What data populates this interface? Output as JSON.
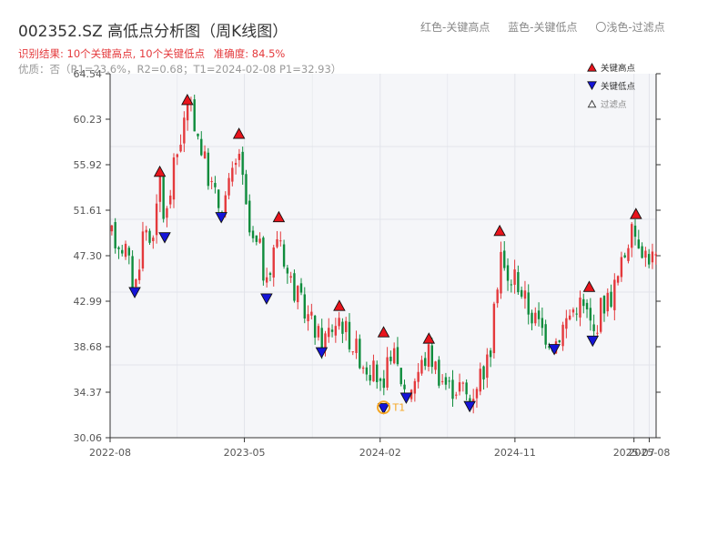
{
  "header": {
    "title": "002352.SZ 高低点分析图（周K线图）",
    "legend_high": "红色-关键高点",
    "legend_low": "蓝色-关键低点",
    "legend_filtered": "〇浅色-过滤点"
  },
  "summary": {
    "result_text": "识别结果: 10个关键高点, 10个关键低点",
    "accuracy_text": "准确度: 84.5%",
    "quality_text": "优质：否（R1=23.6%，R2=0.68；T1=2024-02-08 P1=32.93）"
  },
  "legend": {
    "high_label": "关键高点",
    "low_label": "关键低点",
    "filtered_label": "过滤点"
  },
  "colors": {
    "up": "#e4393c",
    "down": "#0e8c3c",
    "high_marker": "#e8141c",
    "low_marker": "#1414d8",
    "t1_marker": "#f5a623",
    "plot_bg": "#f5f6f9",
    "grid": "#e2e4ea"
  },
  "chart_data": {
    "type": "candlestick",
    "title": "002352.SZ 高低点分析图（周K线图）",
    "ylim": [
      30.06,
      64.54
    ],
    "y_ticks": [
      "30.06",
      "34.37",
      "38.68",
      "42.99",
      "47.30",
      "51.61",
      "55.92",
      "60.23",
      "64.54"
    ],
    "x_ticks": [
      "2022-08",
      "2023-05",
      "2024-02",
      "2024-11",
      "2025-07",
      "2025-08"
    ],
    "x_range": [
      "2022-08-01",
      "2025-08-15"
    ],
    "price_path": [
      [
        "2022-08-01",
        49.3
      ],
      [
        "2022-09-01",
        48.0
      ],
      [
        "2022-09-20",
        44.0
      ],
      [
        "2022-10-10",
        50.5
      ],
      [
        "2022-10-20",
        48.7
      ],
      [
        "2022-11-05",
        51.5
      ],
      [
        "2022-11-10",
        55.0
      ],
      [
        "2022-11-20",
        50.0
      ],
      [
        "2022-12-10",
        56.0
      ],
      [
        "2022-12-25",
        59.0
      ],
      [
        "2023-01-05",
        61.5
      ],
      [
        "2023-01-20",
        60.0
      ],
      [
        "2023-02-10",
        56.0
      ],
      [
        "2023-03-01",
        53.0
      ],
      [
        "2023-03-15",
        51.8
      ],
      [
        "2023-04-01",
        54.0
      ],
      [
        "2023-04-15",
        56.0
      ],
      [
        "2023-04-20",
        57.5
      ],
      [
        "2023-05-01",
        52.5
      ],
      [
        "2023-05-15",
        48.5
      ],
      [
        "2023-06-01",
        48.0
      ],
      [
        "2023-06-15",
        44.0
      ],
      [
        "2023-07-01",
        48.0
      ],
      [
        "2023-07-10",
        50.0
      ],
      [
        "2023-07-25",
        46.0
      ],
      [
        "2023-08-20",
        43.0
      ],
      [
        "2023-09-15",
        41.0
      ],
      [
        "2023-10-05",
        39.0
      ],
      [
        "2023-10-25",
        40.5
      ],
      [
        "2023-11-10",
        41.5
      ],
      [
        "2023-12-01",
        39.5
      ],
      [
        "2024-01-01",
        37.0
      ],
      [
        "2024-01-25",
        36.0
      ],
      [
        "2024-02-08",
        33.5
      ],
      [
        "2024-02-20",
        38.8
      ],
      [
        "2024-03-05",
        37.0
      ],
      [
        "2024-03-25",
        34.2
      ],
      [
        "2024-04-20",
        36.5
      ],
      [
        "2024-05-10",
        38.2
      ],
      [
        "2024-06-01",
        36.0
      ],
      [
        "2024-06-20",
        34.8
      ],
      [
        "2024-07-15",
        35.0
      ],
      [
        "2024-08-01",
        33.5
      ],
      [
        "2024-08-20",
        36.0
      ],
      [
        "2024-09-10",
        37.5
      ],
      [
        "2024-09-25",
        44.0
      ],
      [
        "2024-10-01",
        48.5
      ],
      [
        "2024-10-15",
        44.5
      ],
      [
        "2024-11-01",
        45.5
      ],
      [
        "2024-12-01",
        42.0
      ],
      [
        "2025-01-01",
        40.0
      ],
      [
        "2025-01-20",
        39.0
      ],
      [
        "2025-02-10",
        41.0
      ],
      [
        "2025-03-10",
        43.0
      ],
      [
        "2025-04-01",
        41.5
      ],
      [
        "2025-04-08",
        39.5
      ],
      [
        "2025-04-25",
        42.5
      ],
      [
        "2025-05-15",
        43.5
      ],
      [
        "2025-06-01",
        45.5
      ],
      [
        "2025-06-20",
        49.0
      ],
      [
        "2025-07-05",
        49.5
      ],
      [
        "2025-07-25",
        47.5
      ],
      [
        "2025-08-15",
        47.0
      ]
    ],
    "key_highs": [
      {
        "date": "2022-11-10",
        "price": 54.9
      },
      {
        "date": "2023-01-05",
        "price": 61.7
      },
      {
        "date": "2023-04-20",
        "price": 58.5
      },
      {
        "date": "2023-07-10",
        "price": 50.6
      },
      {
        "date": "2023-11-10",
        "price": 42.2
      },
      {
        "date": "2024-02-08",
        "price": 39.7
      },
      {
        "date": "2024-05-10",
        "price": 39.1
      },
      {
        "date": "2024-10-01",
        "price": 49.3
      },
      {
        "date": "2025-04-01",
        "price": 44.0
      },
      {
        "date": "2025-07-05",
        "price": 50.9
      }
    ],
    "key_lows": [
      {
        "date": "2022-09-20",
        "price": 44.2
      },
      {
        "date": "2022-11-20",
        "price": 49.4
      },
      {
        "date": "2023-03-15",
        "price": 51.3
      },
      {
        "date": "2023-06-15",
        "price": 43.6
      },
      {
        "date": "2023-10-05",
        "price": 38.5
      },
      {
        "date": "2024-02-08",
        "price": 33.2
      },
      {
        "date": "2024-03-25",
        "price": 34.2
      },
      {
        "date": "2024-08-01",
        "price": 33.4
      },
      {
        "date": "2025-01-20",
        "price": 38.8
      },
      {
        "date": "2025-04-08",
        "price": 39.6
      }
    ],
    "t1": {
      "label": "T1",
      "date": "2024-02-08",
      "price": 32.93
    }
  }
}
